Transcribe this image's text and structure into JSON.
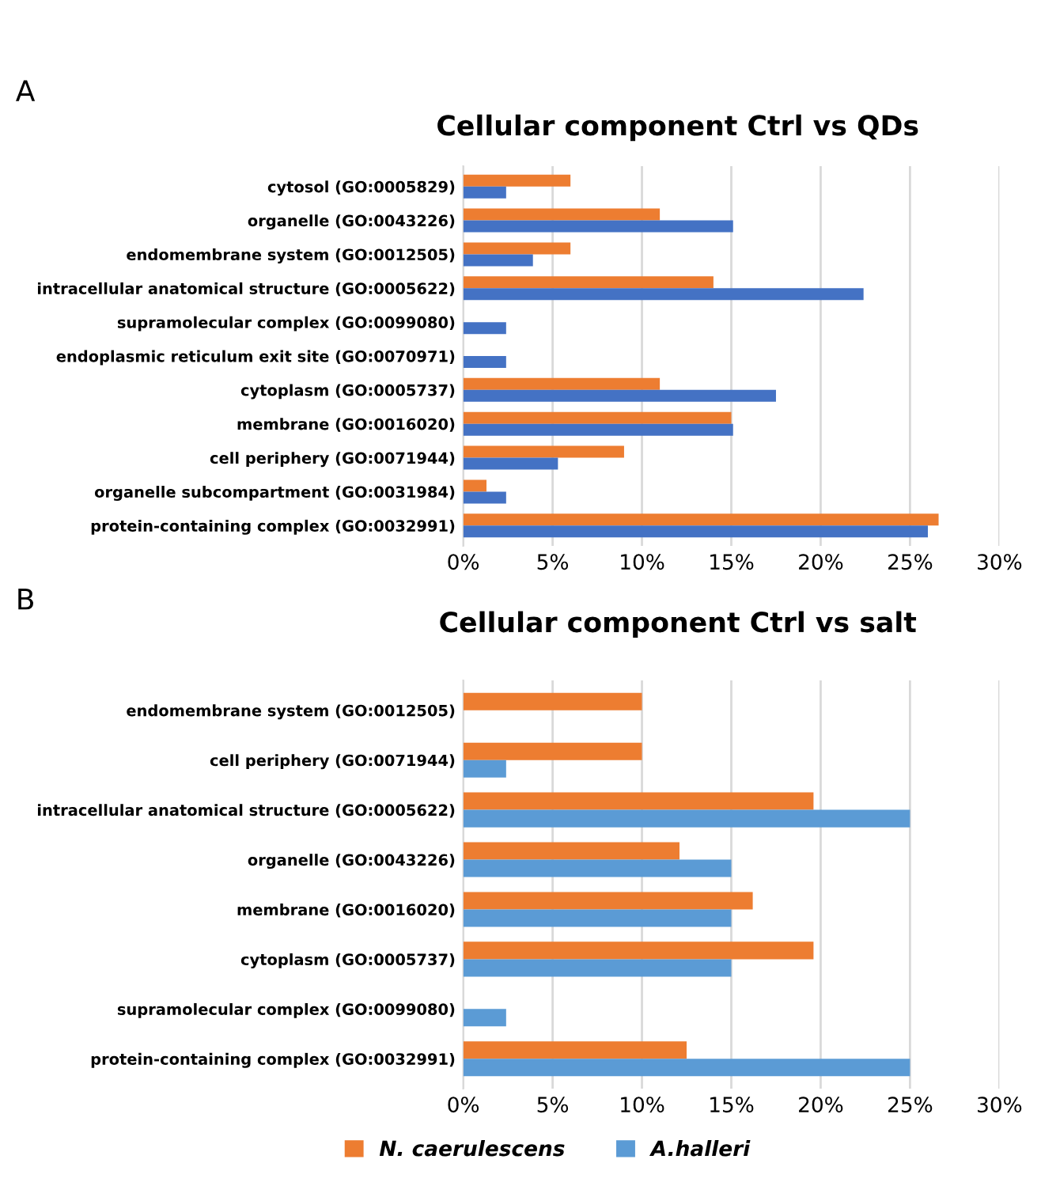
{
  "chart_data": [
    {
      "type": "bar",
      "orientation": "horizontal",
      "title": "Cellular component Ctrl vs QDs",
      "annotations": [
        "A"
      ],
      "categories": [
        "cytosol (GO:0005829)",
        "organelle (GO:0043226)",
        "endomembrane system (GO:0012505)",
        "intracellular anatomical structure (GO:0005622)",
        "supramolecular complex (GO:0099080)",
        "endoplasmic reticulum exit site (GO:0070971)",
        "cytoplasm (GO:0005737)",
        "membrane (GO:0016020)",
        "cell periphery (GO:0071944)",
        "organelle subcompartment (GO:0031984)",
        "protein-containing complex (GO:0032991)"
      ],
      "series": [
        {
          "color": "#ed7d31",
          "values": [
            6.0,
            11.0,
            6.0,
            14.0,
            null,
            null,
            11.0,
            15.0,
            9.0,
            1.3,
            26.6
          ]
        },
        {
          "color": "#4472c4",
          "values": [
            2.4,
            15.1,
            3.9,
            22.4,
            2.4,
            2.4,
            17.5,
            15.1,
            5.3,
            2.4,
            26.0
          ]
        }
      ],
      "xlim": [
        0,
        30
      ],
      "xticks": [
        {
          "value": 0,
          "label": "0%"
        },
        {
          "value": 5,
          "label": "5%"
        },
        {
          "value": 10,
          "label": "10%"
        },
        {
          "value": 15,
          "label": "15%"
        },
        {
          "value": 20,
          "label": "20%"
        },
        {
          "value": 25,
          "label": "25%"
        },
        {
          "value": 30,
          "label": "30%"
        }
      ],
      "grid": "x",
      "legend": false
    },
    {
      "type": "bar",
      "orientation": "horizontal",
      "title": "Cellular component Ctrl vs salt",
      "annotations": [
        "B"
      ],
      "categories": [
        "endomembrane system (GO:0012505)",
        "cell periphery (GO:0071944)",
        "intracellular anatomical structure (GO:0005622)",
        "organelle (GO:0043226)",
        "membrane (GO:0016020)",
        "cytoplasm (GO:0005737)",
        "supramolecular complex (GO:0099080)",
        "protein-containing complex (GO:0032991)"
      ],
      "series": [
        {
          "name": "N. caerulescens",
          "color": "#ed7d31",
          "values": [
            10.0,
            10.0,
            19.6,
            12.1,
            16.2,
            19.6,
            null,
            12.5
          ]
        },
        {
          "name": "A.halleri",
          "color": "#5b9bd5",
          "values": [
            null,
            2.4,
            25.0,
            15.0,
            15.0,
            15.0,
            2.4,
            25.0
          ]
        }
      ],
      "xlim": [
        0,
        30
      ],
      "xticks": [
        {
          "value": 0,
          "label": "0%"
        },
        {
          "value": 5,
          "label": "5%"
        },
        {
          "value": 10,
          "label": "10%"
        },
        {
          "value": 15,
          "label": "15%"
        },
        {
          "value": 20,
          "label": "20%"
        },
        {
          "value": 25,
          "label": "25%"
        },
        {
          "value": 30,
          "label": "30%"
        }
      ],
      "grid": "x",
      "legend": "bottom"
    }
  ]
}
